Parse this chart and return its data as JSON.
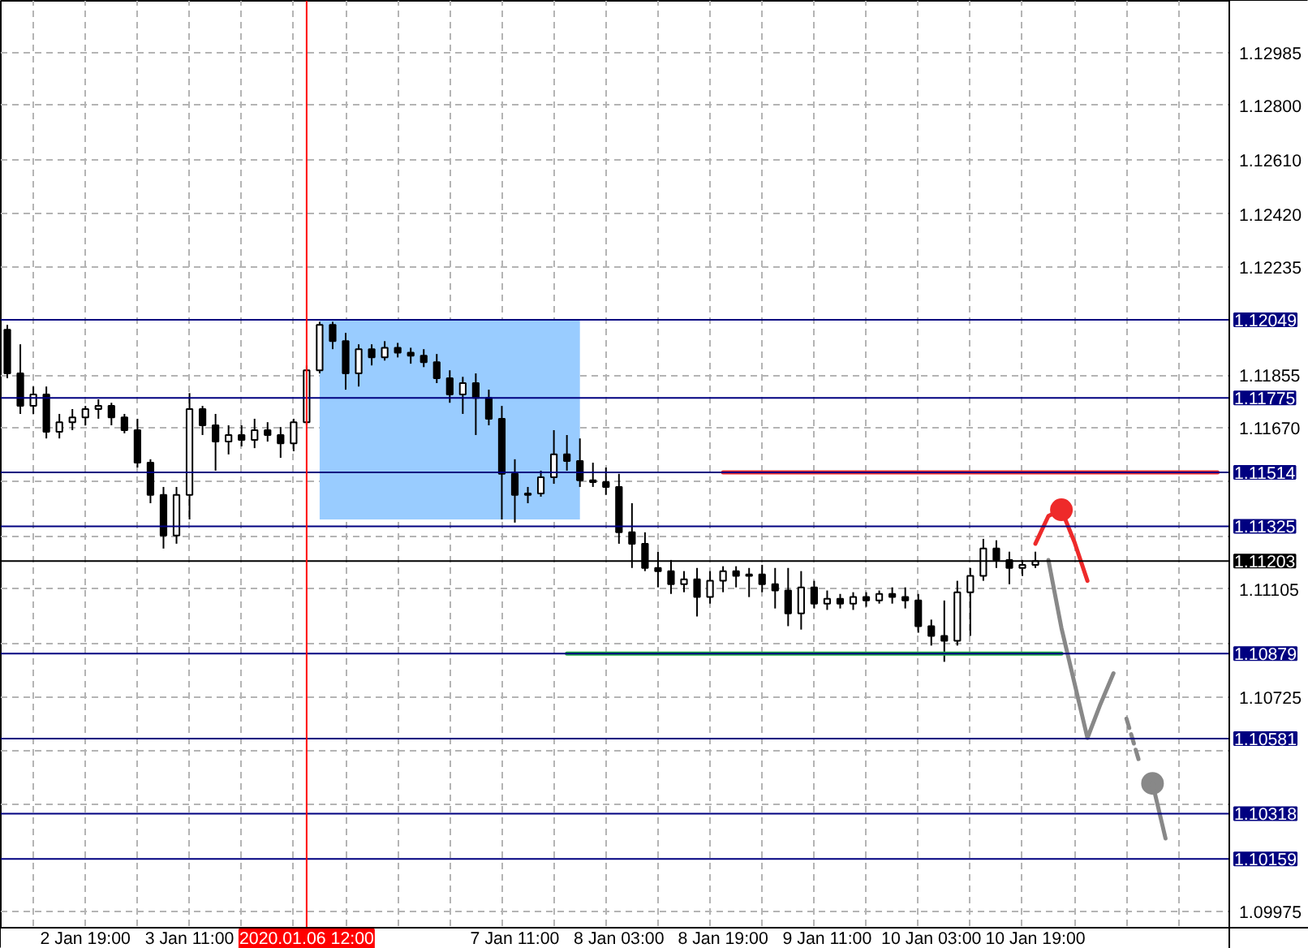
{
  "chart_data": {
    "type": "candlestick",
    "categories": [
      null,
      null,
      null,
      null,
      null,
      null,
      "2 Jan 19:00",
      null,
      null,
      null,
      null,
      null,
      null,
      null,
      "3 Jan 11:00",
      null,
      null,
      null,
      null,
      null,
      null,
      null,
      null,
      "2020.01.06 12:00",
      null,
      null,
      null,
      null,
      null,
      null,
      null,
      null,
      null,
      null,
      null,
      null,
      null,
      null,
      null,
      "7 Jan 11:00",
      null,
      null,
      null,
      null,
      null,
      null,
      null,
      "8 Jan 03:00",
      null,
      null,
      null,
      null,
      null,
      null,
      null,
      "8 Jan 19:00",
      null,
      null,
      null,
      null,
      null,
      null,
      null,
      "9 Jan 11:00",
      null,
      null,
      null,
      null,
      null,
      null,
      null,
      "10 Jan 03:00",
      null,
      null,
      null,
      null,
      null,
      null,
      null,
      "10 Jan 19:00",
      null,
      null,
      null,
      null,
      null,
      null,
      null,
      null,
      null,
      null,
      null,
      null,
      null,
      null
    ],
    "ohlc": [
      [
        1.12014,
        1.12031,
        1.11844,
        1.11861
      ],
      [
        1.11861,
        1.11963,
        1.11719,
        1.11747
      ],
      [
        1.11747,
        1.11815,
        1.11719,
        1.11787
      ],
      [
        1.11787,
        1.11815,
        1.11633,
        1.11656
      ],
      [
        1.11656,
        1.11719,
        1.11633,
        1.1169
      ],
      [
        1.1169,
        1.11736,
        1.11662,
        1.11707
      ],
      [
        1.11707,
        1.11747,
        1.11679,
        1.11736
      ],
      [
        1.11736,
        1.1177,
        1.11702,
        1.11747
      ],
      [
        1.11747,
        1.11758,
        1.11679,
        1.11707
      ],
      [
        1.11707,
        1.11719,
        1.11651,
        1.11662
      ],
      [
        1.11662,
        1.11702,
        1.11531,
        1.11548
      ],
      [
        1.11548,
        1.1156,
        1.11406,
        1.11435
      ],
      [
        1.11435,
        1.11463,
        1.11247,
        1.11293
      ],
      [
        1.11293,
        1.11463,
        1.11264,
        1.11435
      ],
      [
        1.11435,
        1.11792,
        1.11349,
        1.11736
      ],
      [
        1.11736,
        1.11747,
        1.11645,
        1.11679
      ],
      [
        1.11679,
        1.11719,
        1.1152,
        1.11622
      ],
      [
        1.11622,
        1.11679,
        1.11577,
        1.11645
      ],
      [
        1.11645,
        1.11679,
        1.11605,
        1.11628
      ],
      [
        1.11628,
        1.11702,
        1.11599,
        1.11662
      ],
      [
        1.11662,
        1.1169,
        1.11622,
        1.11645
      ],
      [
        1.11645,
        1.11673,
        1.11565,
        1.11616
      ],
      [
        1.11616,
        1.11702,
        1.11588,
        1.1169
      ],
      [
        1.1169,
        1.11889,
        1.11679,
        1.11872
      ],
      [
        1.11872,
        1.12042,
        1.11861,
        1.12031
      ],
      [
        1.12031,
        1.12042,
        1.11946,
        1.11974
      ],
      [
        1.11974,
        1.12003,
        1.11804,
        1.11861
      ],
      [
        1.11861,
        1.11963,
        1.11815,
        1.11946
      ],
      [
        1.11946,
        1.11963,
        1.11889,
        1.11917
      ],
      [
        1.11917,
        1.11974,
        1.11906,
        1.11951
      ],
      [
        1.11951,
        1.11968,
        1.11917,
        1.11934
      ],
      [
        1.11934,
        1.11951,
        1.11895,
        1.11923
      ],
      [
        1.11923,
        1.11946,
        1.11883,
        1.119
      ],
      [
        1.119,
        1.11929,
        1.11827,
        1.11844
      ],
      [
        1.11844,
        1.11872,
        1.11758,
        1.11787
      ],
      [
        1.11787,
        1.11849,
        1.11719,
        1.11827
      ],
      [
        1.11827,
        1.11861,
        1.11645,
        1.11775
      ],
      [
        1.11775,
        1.11804,
        1.11679,
        1.11702
      ],
      [
        1.11702,
        1.11747,
        1.11349,
        1.11509
      ],
      [
        1.11509,
        1.1156,
        1.11338,
        1.11435
      ],
      [
        1.11435,
        1.11463,
        1.11406,
        1.1144
      ],
      [
        1.1144,
        1.1152,
        1.11429,
        1.11497
      ],
      [
        1.11497,
        1.11662,
        1.11474,
        1.11577
      ],
      [
        1.11577,
        1.11645,
        1.1152,
        1.11554
      ],
      [
        1.11554,
        1.11633,
        1.11463,
        1.11486
      ],
      [
        1.11486,
        1.11548,
        1.11463,
        1.1148
      ],
      [
        1.1148,
        1.11531,
        1.11435,
        1.11463
      ],
      [
        1.11463,
        1.11509,
        1.11264,
        1.11304
      ],
      [
        1.11304,
        1.11406,
        1.11179,
        1.11264
      ],
      [
        1.11264,
        1.11304,
        1.11168,
        1.11179
      ],
      [
        1.11179,
        1.11236,
        1.11111,
        1.11168
      ],
      [
        1.11168,
        1.11207,
        1.11088,
        1.11122
      ],
      [
        1.11122,
        1.11168,
        1.11094,
        1.11139
      ],
      [
        1.11139,
        1.11179,
        1.11009,
        1.11077
      ],
      [
        1.11077,
        1.11168,
        1.11054,
        1.11134
      ],
      [
        1.11134,
        1.11185,
        1.11094,
        1.11168
      ],
      [
        1.11168,
        1.11185,
        1.11111,
        1.11151
      ],
      [
        1.11151,
        1.11179,
        1.11077,
        1.11156
      ],
      [
        1.11156,
        1.1119,
        1.11094,
        1.11122
      ],
      [
        1.11122,
        1.11179,
        1.11037,
        1.111
      ],
      [
        1.111,
        1.11179,
        1.10975,
        1.1102
      ],
      [
        1.1102,
        1.11168,
        1.10963,
        1.11111
      ],
      [
        1.11111,
        1.11134,
        1.11037,
        1.11054
      ],
      [
        1.11054,
        1.111,
        1.11032,
        1.11071
      ],
      [
        1.11071,
        1.11088,
        1.11037,
        1.11054
      ],
      [
        1.11054,
        1.11094,
        1.11032,
        1.11077
      ],
      [
        1.11077,
        1.11094,
        1.11043,
        1.11065
      ],
      [
        1.11065,
        1.111,
        1.11054,
        1.11088
      ],
      [
        1.11088,
        1.11111,
        1.11054,
        1.11077
      ],
      [
        1.11077,
        1.11111,
        1.11037,
        1.11065
      ],
      [
        1.11065,
        1.11088,
        1.10952,
        1.10975
      ],
      [
        1.10975,
        1.10998,
        1.10907,
        1.10941
      ],
      [
        1.10941,
        1.11065,
        1.1085,
        1.10924
      ],
      [
        1.10924,
        1.11134,
        1.10907,
        1.11094
      ],
      [
        1.11094,
        1.11179,
        1.10941,
        1.11151
      ],
      [
        1.11151,
        1.11281,
        1.11134,
        1.11247
      ],
      [
        1.11247,
        1.11276,
        1.11179,
        1.11207
      ],
      [
        1.11207,
        1.11236,
        1.11122,
        1.11179
      ],
      [
        1.11179,
        1.11207,
        1.11151,
        1.1119
      ],
      [
        1.1119,
        1.11236,
        1.11179,
        1.11203
      ],
      null,
      null,
      null,
      null,
      null,
      null,
      null,
      null,
      null,
      null,
      null,
      null,
      null,
      null
    ],
    "series": [
      {
        "type": "line",
        "color": "#99ccff",
        "values": [
          null,
          null,
          null,
          null,
          null,
          null,
          null,
          null,
          null,
          null,
          null,
          null,
          null,
          null,
          null,
          null,
          null,
          null,
          null,
          null,
          null,
          null,
          null,
          null,
          null,
          null,
          null,
          null,
          null,
          null,
          null,
          null,
          null,
          null,
          null,
          null,
          null,
          null,
          null,
          null,
          null,
          null,
          null,
          null,
          null,
          null,
          null,
          null,
          null,
          null,
          null,
          null,
          null,
          null,
          null,
          null,
          null,
          null,
          null,
          null,
          null,
          null,
          null,
          null,
          null,
          null,
          null,
          null,
          null,
          null,
          null,
          null,
          null,
          null,
          null,
          null,
          null,
          null,
          null,
          null,
          null,
          null,
          null,
          null,
          null,
          null,
          null,
          null,
          null,
          null,
          null,
          null,
          null,
          null
        ],
        "upper": [
          null,
          null,
          null,
          null,
          null,
          null,
          null,
          null,
          null,
          null,
          null,
          null,
          null,
          null,
          null,
          null,
          null,
          null,
          null,
          null,
          null,
          null,
          null,
          null,
          1.12049,
          1.12049,
          1.12049,
          1.12049,
          1.12049,
          1.12049,
          1.12049,
          1.12049,
          1.12049,
          1.12049,
          1.12049,
          1.12049,
          1.12049,
          1.12049,
          1.12049,
          1.12049,
          1.12049,
          1.12049,
          1.12049,
          1.12049,
          1.12049,
          null,
          null,
          null,
          null,
          null,
          null,
          null,
          null,
          null,
          null,
          null,
          null,
          null,
          null,
          null,
          null,
          null,
          null,
          null,
          null,
          null,
          null,
          null,
          null,
          null,
          null,
          null,
          null,
          null,
          null,
          null,
          null,
          null,
          null,
          null,
          null,
          null,
          null,
          null,
          null,
          null,
          null,
          null,
          null,
          null,
          null,
          null,
          null,
          null
        ],
        "lower": [
          null,
          null,
          null,
          null,
          null,
          null,
          null,
          null,
          null,
          null,
          null,
          null,
          null,
          null,
          null,
          null,
          null,
          null,
          null,
          null,
          null,
          null,
          null,
          null,
          1.11349,
          1.11349,
          1.11349,
          1.11349,
          1.11349,
          1.11349,
          1.11349,
          1.11349,
          1.11349,
          1.11349,
          1.11349,
          1.11349,
          1.11349,
          1.11349,
          1.11349,
          1.11349,
          1.11349,
          1.11349,
          1.11349,
          1.11349,
          1.11349,
          null,
          null,
          null,
          null,
          null,
          null,
          null,
          null,
          null,
          null,
          null,
          null,
          null,
          null,
          null,
          null,
          null,
          null,
          null,
          null,
          null,
          null,
          null,
          null,
          null,
          null,
          null,
          null,
          null,
          null,
          null,
          null,
          null,
          null,
          null,
          null,
          null,
          null,
          null,
          null,
          null,
          null,
          null,
          null,
          null,
          null,
          null,
          null,
          null
        ]
      },
      {
        "type": "line",
        "color": "#ee2a2a",
        "values": [
          null,
          null,
          null,
          null,
          null,
          null,
          null,
          null,
          null,
          null,
          null,
          null,
          null,
          null,
          null,
          null,
          null,
          null,
          null,
          null,
          null,
          null,
          null,
          null,
          null,
          null,
          null,
          null,
          null,
          null,
          null,
          null,
          null,
          null,
          null,
          null,
          null,
          null,
          null,
          null,
          null,
          null,
          null,
          null,
          null,
          null,
          null,
          null,
          null,
          null,
          null,
          null,
          null,
          null,
          null,
          1.11514,
          1.11514,
          1.11514,
          1.11514,
          1.11514,
          1.11514,
          1.11514,
          1.11514,
          1.11514,
          1.11514,
          1.11514,
          1.11514,
          1.11514,
          1.11514,
          1.11514,
          1.11514,
          1.11514,
          1.11514,
          1.11514,
          1.11514,
          1.11514,
          1.11514,
          1.11514,
          1.11514,
          1.11514,
          1.11514,
          1.11514,
          1.11514,
          1.11514,
          1.11514,
          1.11514,
          1.11514,
          1.11514,
          1.11514,
          1.11514,
          1.11514,
          1.11514,
          1.11514,
          1.11514
        ]
      },
      {
        "type": "line",
        "color": "#22aa44",
        "values": [
          null,
          null,
          null,
          null,
          null,
          null,
          null,
          null,
          null,
          null,
          null,
          null,
          null,
          null,
          null,
          null,
          null,
          null,
          null,
          null,
          null,
          null,
          null,
          null,
          null,
          null,
          null,
          null,
          null,
          null,
          null,
          null,
          null,
          null,
          null,
          null,
          null,
          null,
          null,
          null,
          null,
          null,
          null,
          1.10879,
          1.10879,
          1.10879,
          1.10879,
          1.10879,
          1.10879,
          1.10879,
          1.10879,
          1.10879,
          1.10879,
          1.10879,
          1.10879,
          1.10879,
          1.10879,
          1.10879,
          1.10879,
          1.10879,
          1.10879,
          1.10879,
          1.10879,
          1.10879,
          1.10879,
          1.10879,
          1.10879,
          1.10879,
          1.10879,
          1.10879,
          1.10879,
          1.10879,
          1.10879,
          1.10879,
          1.10879,
          1.10879,
          1.10879,
          1.10879,
          1.10879,
          1.10879,
          1.10879,
          1.10879,
          null,
          null,
          null,
          null,
          null,
          null,
          null,
          null,
          null,
          null,
          null,
          null
        ]
      },
      {
        "type": "line",
        "color": "#ee2a2a",
        "values": [
          null,
          null,
          null,
          null,
          null,
          null,
          null,
          null,
          null,
          null,
          null,
          null,
          null,
          null,
          null,
          null,
          null,
          null,
          null,
          null,
          null,
          null,
          null,
          null,
          null,
          null,
          null,
          null,
          null,
          null,
          null,
          null,
          null,
          null,
          null,
          null,
          null,
          null,
          null,
          null,
          null,
          null,
          null,
          null,
          null,
          null,
          null,
          null,
          null,
          null,
          null,
          null,
          null,
          null,
          null,
          null,
          null,
          null,
          null,
          null,
          null,
          null,
          null,
          null,
          null,
          null,
          null,
          null,
          null,
          null,
          null,
          null,
          null,
          null,
          null,
          null,
          null,
          null,
          null,
          1.11264,
          1.11361,
          1.11383,
          1.1127,
          1.11134,
          null,
          null,
          null,
          null,
          null,
          null,
          null,
          null,
          null,
          null
        ]
      },
      {
        "type": "scatter",
        "color": "#ee2a2a",
        "values": [
          null,
          null,
          null,
          null,
          null,
          null,
          null,
          null,
          null,
          null,
          null,
          null,
          null,
          null,
          null,
          null,
          null,
          null,
          null,
          null,
          null,
          null,
          null,
          null,
          null,
          null,
          null,
          null,
          null,
          null,
          null,
          null,
          null,
          null,
          null,
          null,
          null,
          null,
          null,
          null,
          null,
          null,
          null,
          null,
          null,
          null,
          null,
          null,
          null,
          null,
          null,
          null,
          null,
          null,
          null,
          null,
          null,
          null,
          null,
          null,
          null,
          null,
          null,
          null,
          null,
          null,
          null,
          null,
          null,
          null,
          null,
          null,
          null,
          null,
          null,
          null,
          null,
          null,
          null,
          null,
          null,
          1.11383,
          null,
          null,
          null,
          null,
          null,
          null,
          null,
          null,
          null,
          null,
          null,
          null
        ]
      },
      {
        "type": "line",
        "color": "#888888",
        "values": [
          null,
          null,
          null,
          null,
          null,
          null,
          null,
          null,
          null,
          null,
          null,
          null,
          null,
          null,
          null,
          null,
          null,
          null,
          null,
          null,
          null,
          null,
          null,
          null,
          null,
          null,
          null,
          null,
          null,
          null,
          null,
          null,
          null,
          null,
          null,
          null,
          null,
          null,
          null,
          null,
          null,
          null,
          null,
          null,
          null,
          null,
          null,
          null,
          null,
          null,
          null,
          null,
          null,
          null,
          null,
          null,
          null,
          null,
          null,
          null,
          null,
          null,
          null,
          null,
          null,
          null,
          null,
          null,
          null,
          null,
          null,
          null,
          null,
          null,
          null,
          null,
          null,
          null,
          null,
          null,
          1.11207,
          1.10969,
          1.10776,
          1.10583,
          1.10702,
          1.1081,
          null,
          null,
          null,
          null,
          null,
          null,
          null,
          null
        ]
      },
      {
        "type": "line",
        "color": "#888888",
        "line_style": "dashed",
        "values": [
          null,
          null,
          null,
          null,
          null,
          null,
          null,
          null,
          null,
          null,
          null,
          null,
          null,
          null,
          null,
          null,
          null,
          null,
          null,
          null,
          null,
          null,
          null,
          null,
          null,
          null,
          null,
          null,
          null,
          null,
          null,
          null,
          null,
          null,
          null,
          null,
          null,
          null,
          null,
          null,
          null,
          null,
          null,
          null,
          null,
          null,
          null,
          null,
          null,
          null,
          null,
          null,
          null,
          null,
          null,
          null,
          null,
          null,
          null,
          null,
          null,
          null,
          null,
          null,
          null,
          null,
          null,
          null,
          null,
          null,
          null,
          null,
          null,
          null,
          null,
          null,
          null,
          null,
          null,
          null,
          null,
          null,
          null,
          null,
          null,
          null,
          1.10651,
          1.10497,
          null,
          null,
          null,
          null,
          null,
          null
        ]
      },
      {
        "type": "scatter",
        "color": "#888888",
        "values": [
          null,
          null,
          null,
          null,
          null,
          null,
          null,
          null,
          null,
          null,
          null,
          null,
          null,
          null,
          null,
          null,
          null,
          null,
          null,
          null,
          null,
          null,
          null,
          null,
          null,
          null,
          null,
          null,
          null,
          null,
          null,
          null,
          null,
          null,
          null,
          null,
          null,
          null,
          null,
          null,
          null,
          null,
          null,
          null,
          null,
          null,
          null,
          null,
          null,
          null,
          null,
          null,
          null,
          null,
          null,
          null,
          null,
          null,
          null,
          null,
          null,
          null,
          null,
          null,
          null,
          null,
          null,
          null,
          null,
          null,
          null,
          null,
          null,
          null,
          null,
          null,
          null,
          null,
          null,
          null,
          null,
          null,
          null,
          null,
          null,
          null,
          null,
          null,
          1.10424,
          null,
          null,
          null,
          null,
          null
        ]
      },
      {
        "type": "line",
        "color": "#888888",
        "values": [
          null,
          null,
          null,
          null,
          null,
          null,
          null,
          null,
          null,
          null,
          null,
          null,
          null,
          null,
          null,
          null,
          null,
          null,
          null,
          null,
          null,
          null,
          null,
          null,
          null,
          null,
          null,
          null,
          null,
          null,
          null,
          null,
          null,
          null,
          null,
          null,
          null,
          null,
          null,
          null,
          null,
          null,
          null,
          null,
          null,
          null,
          null,
          null,
          null,
          null,
          null,
          null,
          null,
          null,
          null,
          null,
          null,
          null,
          null,
          null,
          null,
          null,
          null,
          null,
          null,
          null,
          null,
          null,
          null,
          null,
          null,
          null,
          null,
          null,
          null,
          null,
          null,
          null,
          null,
          null,
          null,
          null,
          null,
          null,
          null,
          null,
          null,
          null,
          1.10424,
          1.10231,
          null,
          null,
          null,
          null
        ]
      }
    ],
    "ref_lines": [
      {
        "axis": "y",
        "value": 1.12049,
        "label": "1.12049",
        "color": "#000080"
      },
      {
        "axis": "y",
        "value": 1.11775,
        "label": "1.11775",
        "color": "#000080"
      },
      {
        "axis": "y",
        "value": 1.11514,
        "label": "1.11514",
        "color": "#000080"
      },
      {
        "axis": "y",
        "value": 1.11325,
        "label": "1.11325",
        "color": "#000080"
      },
      {
        "axis": "y",
        "value": 1.11203,
        "label": "1.11203",
        "color": "#000000"
      },
      {
        "axis": "y",
        "value": 1.10879,
        "label": "1.10879",
        "color": "#000080"
      },
      {
        "axis": "y",
        "value": 1.10581,
        "label": "1.10581",
        "color": "#000080"
      },
      {
        "axis": "y",
        "value": 1.10318,
        "label": "1.10318",
        "color": "#000080"
      },
      {
        "axis": "y",
        "value": 1.10159,
        "label": "1.10159",
        "color": "#000080"
      },
      {
        "axis": "x",
        "value": "2020.01.06 12:00",
        "color": "#ff0000"
      }
    ],
    "ylim": [
      1.09918,
      1.13167
    ],
    "yticks": [
      {
        "value": 1.12985,
        "label": "1.12985"
      },
      {
        "value": 1.128,
        "label": "1.12800"
      },
      {
        "value": 1.1261,
        "label": "1.12610"
      },
      {
        "value": 1.1242,
        "label": "1.12420"
      },
      {
        "value": 1.12235,
        "label": "1.12235"
      },
      {
        "value": 1.11855,
        "label": "1.11855"
      },
      {
        "value": 1.1167,
        "label": "1.11670"
      },
      {
        "value": 1.1148,
        "label": null
      },
      {
        "value": 1.1129,
        "label": null
      },
      {
        "value": 1.11105,
        "label": "1.11105"
      },
      {
        "value": 1.10915,
        "label": null
      },
      {
        "value": 1.10725,
        "label": "1.10725"
      },
      {
        "value": 1.1054,
        "label": null
      },
      {
        "value": 1.1035,
        "label": null
      },
      {
        "value": 1.09975,
        "label": "1.09975"
      }
    ],
    "grid": true
  }
}
